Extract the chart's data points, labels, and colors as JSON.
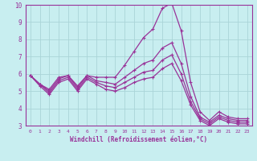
{
  "xlabel": "Windchill (Refroidissement éolien,°C)",
  "bg_color": "#c8eef0",
  "grid_color": "#aad4d8",
  "line_color": "#993399",
  "xlim": [
    -0.5,
    23.5
  ],
  "ylim": [
    3,
    10
  ],
  "xticks": [
    0,
    1,
    2,
    3,
    4,
    5,
    6,
    7,
    8,
    9,
    10,
    11,
    12,
    13,
    14,
    15,
    16,
    17,
    18,
    19,
    20,
    21,
    22,
    23
  ],
  "yticks": [
    3,
    4,
    5,
    6,
    7,
    8,
    9,
    10
  ],
  "series": [
    [
      5.9,
      5.4,
      5.1,
      5.8,
      5.9,
      5.3,
      5.9,
      5.8,
      5.8,
      5.8,
      6.5,
      7.3,
      8.1,
      8.6,
      9.8,
      10.1,
      8.5,
      5.5,
      3.8,
      3.3,
      3.8,
      3.5,
      3.4,
      3.4
    ],
    [
      5.9,
      5.4,
      5.0,
      5.7,
      5.9,
      5.2,
      5.9,
      5.6,
      5.5,
      5.4,
      5.8,
      6.2,
      6.6,
      6.8,
      7.5,
      7.8,
      6.6,
      4.7,
      3.5,
      3.2,
      3.6,
      3.4,
      3.3,
      3.3
    ],
    [
      5.9,
      5.4,
      4.9,
      5.6,
      5.8,
      5.1,
      5.8,
      5.5,
      5.3,
      5.2,
      5.5,
      5.8,
      6.1,
      6.2,
      6.8,
      7.1,
      6.0,
      4.4,
      3.4,
      3.1,
      3.5,
      3.3,
      3.2,
      3.2
    ],
    [
      5.9,
      5.3,
      4.8,
      5.5,
      5.7,
      5.0,
      5.7,
      5.4,
      5.1,
      5.0,
      5.2,
      5.5,
      5.7,
      5.8,
      6.3,
      6.6,
      5.6,
      4.2,
      3.3,
      3.0,
      3.4,
      3.2,
      3.1,
      3.1
    ]
  ]
}
